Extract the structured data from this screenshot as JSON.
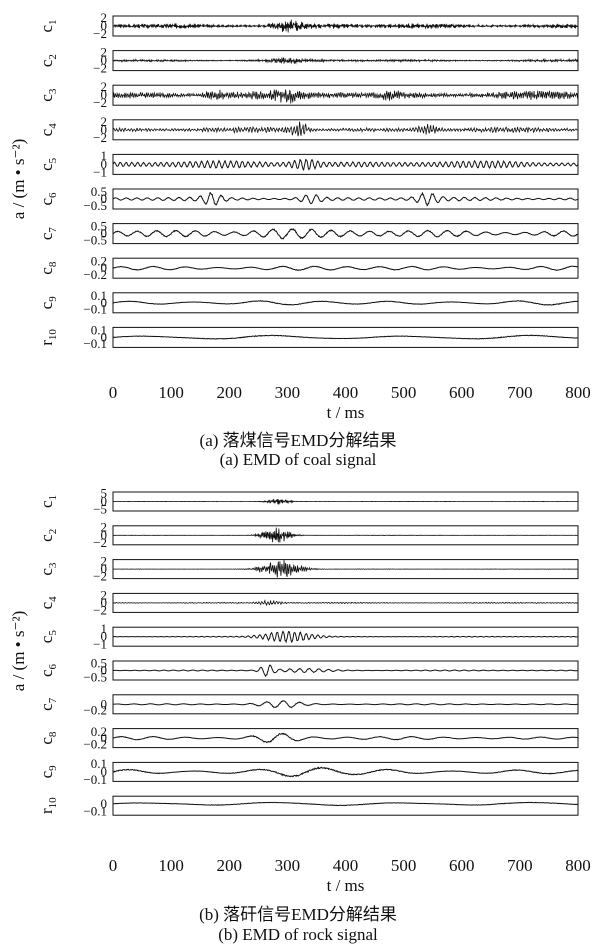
{
  "panels": [
    {
      "id": "coal",
      "caption_cn": "(a) 落煤信号EMD分解结果",
      "caption_en": "(a) EMD of coal signal",
      "ylabel": "a / (m • s⁻²)",
      "xlabel": "t / ms",
      "xticks": [
        "0",
        "100",
        "200",
        "300",
        "400",
        "500",
        "600",
        "700",
        "800"
      ]
    },
    {
      "id": "rock",
      "caption_cn": "(b) 落矸信号EMD分解结果",
      "caption_en": "(b) EMD of rock signal",
      "ylabel": "a / (m • s⁻²)",
      "xlabel": "t / ms",
      "xticks": [
        "0",
        "100",
        "200",
        "300",
        "400",
        "500",
        "600",
        "700",
        "800"
      ]
    }
  ],
  "chart_data": [
    {
      "type": "line",
      "title": "(a) EMD of coal signal",
      "xlabel": "t / ms",
      "ylabel": "a / (m • s⁻²)",
      "xlim": [
        0,
        800
      ],
      "series": [
        {
          "name": "c1",
          "ticks": [
            "2",
            "0",
            "−2"
          ],
          "ylim": [
            -2.5,
            2.5
          ],
          "amplitude": 0.6,
          "osc_per_ms": 0.5,
          "bursts": [
            [
              300,
              25,
              1.0
            ]
          ]
        },
        {
          "name": "c2",
          "ticks": [
            "2",
            "0",
            "−2"
          ],
          "ylim": [
            -2.5,
            2.5
          ],
          "amplitude": 0.28,
          "osc_per_ms": 0.4,
          "bursts": [
            [
              300,
              30,
              0.4
            ]
          ]
        },
        {
          "name": "c3",
          "ticks": [
            "2",
            "0",
            "−2"
          ],
          "ylim": [
            -2.5,
            2.5
          ],
          "amplitude": 0.9,
          "osc_per_ms": 0.3,
          "bursts": [
            [
              175,
              15,
              0.8
            ],
            [
              300,
              20,
              0.8
            ],
            [
              480,
              15,
              0.6
            ]
          ]
        },
        {
          "name": "c4",
          "ticks": [
            "2",
            "0",
            "−2"
          ],
          "ylim": [
            -2.5,
            2.5
          ],
          "amplitude": 0.55,
          "osc_per_ms": 0.2,
          "bursts": [
            [
              320,
              15,
              1.4
            ],
            [
              540,
              20,
              0.8
            ]
          ]
        },
        {
          "name": "c5",
          "ticks": [
            "1",
            "0",
            "−1"
          ],
          "ylim": [
            -1.2,
            1.2
          ],
          "amplitude": 0.5,
          "osc_per_ms": 0.1,
          "bursts": [
            [
              330,
              25,
              0.6
            ]
          ]
        },
        {
          "name": "c6",
          "ticks": [
            "0.5",
            "0",
            "−0.5"
          ],
          "ylim": [
            -0.7,
            0.7
          ],
          "amplitude": 0.15,
          "osc_per_ms": 0.055,
          "bursts": [
            [
              170,
              18,
              0.4
            ],
            [
              340,
              20,
              0.3
            ],
            [
              540,
              20,
              0.4
            ]
          ]
        },
        {
          "name": "c7",
          "ticks": [
            "0.5",
            "0",
            "−0.5"
          ],
          "ylim": [
            -0.7,
            0.7
          ],
          "amplitude": 0.3,
          "osc_per_ms": 0.03,
          "bursts": [
            [
              290,
              60,
              0.25
            ]
          ]
        },
        {
          "name": "c8",
          "ticks": [
            "0.2",
            "0",
            "−0.2"
          ],
          "ylim": [
            -0.3,
            0.3
          ],
          "amplitude": 0.08,
          "osc_per_ms": 0.018,
          "bursts": []
        },
        {
          "name": "c9",
          "ticks": [
            "0.1",
            "0",
            "−0.1"
          ],
          "ylim": [
            -0.15,
            0.15
          ],
          "amplitude": 0.04,
          "osc_per_ms": 0.009,
          "bursts": []
        },
        {
          "name": "r10",
          "ticks": [
            "0.1",
            "0",
            "−0.1"
          ],
          "ylim": [
            -0.15,
            0.15
          ],
          "amplitude": 0.04,
          "osc_per_ms": 0.0045,
          "bursts": []
        }
      ]
    },
    {
      "type": "line",
      "title": "(b) EMD of rock signal",
      "xlabel": "t / ms",
      "ylabel": "a / (m • s⁻²)",
      "xlim": [
        0,
        800
      ],
      "series": [
        {
          "name": "c1",
          "ticks": [
            "5",
            "0",
            "−5"
          ],
          "ylim": [
            -6,
            6
          ],
          "amplitude": 0.05,
          "osc_per_ms": 0.5,
          "bursts": [
            [
              285,
              20,
              1.5
            ]
          ]
        },
        {
          "name": "c2",
          "ticks": [
            "2",
            "0",
            "−2"
          ],
          "ylim": [
            -2.5,
            2.5
          ],
          "amplitude": 0.05,
          "osc_per_ms": 0.4,
          "bursts": [
            [
              280,
              25,
              1.6
            ]
          ]
        },
        {
          "name": "c3",
          "ticks": [
            "2",
            "0",
            "−2"
          ],
          "ylim": [
            -2.5,
            2.5
          ],
          "amplitude": 0.05,
          "osc_per_ms": 0.3,
          "bursts": [
            [
              290,
              35,
              1.8
            ]
          ]
        },
        {
          "name": "c4",
          "ticks": [
            "2",
            "0",
            "−2"
          ],
          "ylim": [
            -2.5,
            2.5
          ],
          "amplitude": 0.15,
          "osc_per_ms": 0.2,
          "bursts": [
            [
              270,
              20,
              0.4
            ]
          ]
        },
        {
          "name": "c5",
          "ticks": [
            "1",
            "0",
            "−1"
          ],
          "ylim": [
            -1.2,
            1.2
          ],
          "amplitude": 0.05,
          "osc_per_ms": 0.1,
          "bursts": [
            [
              300,
              45,
              0.8
            ]
          ]
        },
        {
          "name": "c6",
          "ticks": [
            "0.5",
            "0",
            "−0.5"
          ],
          "ylim": [
            -0.7,
            0.7
          ],
          "amplitude": 0.04,
          "osc_per_ms": 0.06,
          "bursts": [
            [
              265,
              12,
              0.5
            ],
            [
              330,
              50,
              0.15
            ]
          ]
        },
        {
          "name": "c7",
          "ticks": [
            "0",
            "−0.2"
          ],
          "ylim": [
            -0.3,
            0.3
          ],
          "amplitude": 0.02,
          "osc_per_ms": 0.035,
          "bursts": [
            [
              290,
              40,
              0.12
            ]
          ]
        },
        {
          "name": "c8",
          "ticks": [
            "0.2",
            "0",
            "−0.2"
          ],
          "ylim": [
            -0.3,
            0.3
          ],
          "amplitude": 0.06,
          "osc_per_ms": 0.018,
          "bursts": [
            [
              280,
              40,
              0.15
            ]
          ]
        },
        {
          "name": "c9",
          "ticks": [
            "0.1",
            "0",
            "−0.1"
          ],
          "ylim": [
            -0.12,
            0.12
          ],
          "amplitude": 0.04,
          "osc_per_ms": 0.009,
          "bursts": [
            [
              330,
              60,
              0.05
            ]
          ]
        },
        {
          "name": "r10",
          "ticks": [
            "0",
            "−0.1"
          ],
          "ylim": [
            -0.15,
            0.1
          ],
          "amplitude": 0.03,
          "osc_per_ms": 0.0045,
          "bursts": []
        }
      ]
    }
  ],
  "colors": {
    "trace": "#111111",
    "frame": "#111111",
    "background": "#ffffff"
  }
}
